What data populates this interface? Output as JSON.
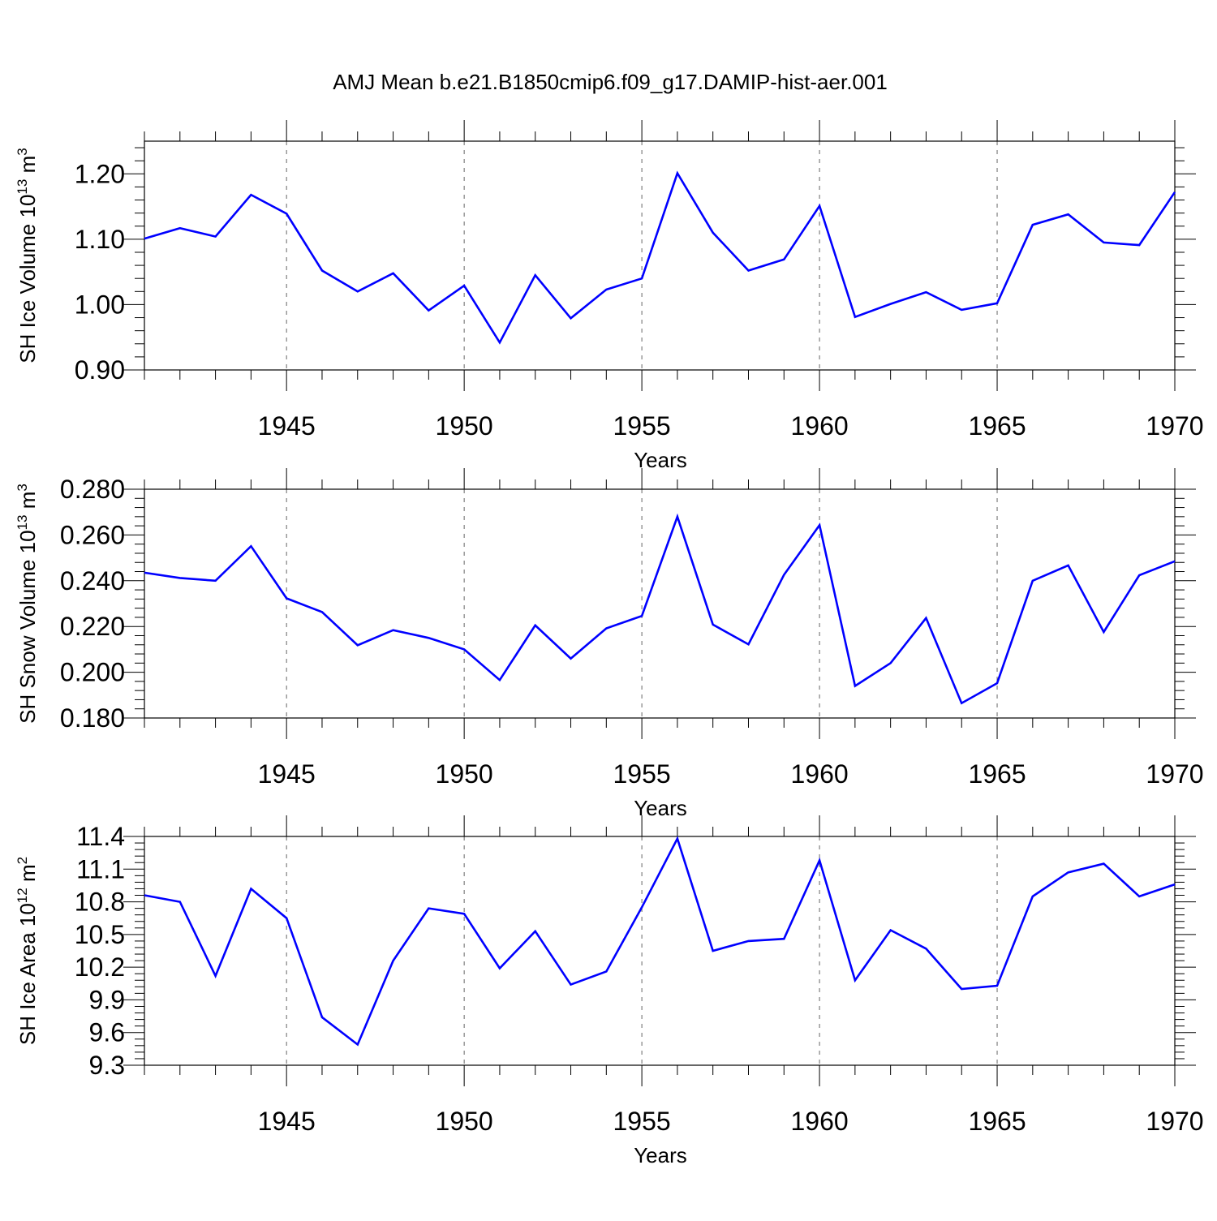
{
  "title": "AMJ Mean b.e21.B1850cmip6.f09_g17.DAMIP-hist-aer.001",
  "colors": {
    "line": "#0000ff",
    "axis": "#000000",
    "grid": "#666666"
  },
  "chart_data": [
    {
      "type": "line",
      "xlabel": "Years",
      "ylabel": {
        "text": "SH Ice Volume 10",
        "exp": "13",
        "unit": " m",
        "unit_exp": "3"
      },
      "xlim": [
        1941,
        1970
      ],
      "ylim": [
        0.9,
        1.25
      ],
      "yticks": [
        0.9,
        1.0,
        1.1,
        1.2
      ],
      "ytick_labels": [
        "0.90",
        "1.00",
        "1.10",
        "1.20"
      ],
      "xticks": [
        1945,
        1950,
        1955,
        1960,
        1965,
        1970
      ],
      "xtick_labels": [
        "1945",
        "1950",
        "1955",
        "1960",
        "1965",
        "1970"
      ],
      "grid": "vertical dashed at major x ticks",
      "x": [
        1941,
        1942,
        1943,
        1944,
        1945,
        1946,
        1947,
        1948,
        1949,
        1950,
        1951,
        1952,
        1953,
        1954,
        1955,
        1956,
        1957,
        1958,
        1959,
        1960,
        1961,
        1962,
        1963,
        1964,
        1965,
        1966,
        1967,
        1968,
        1969,
        1970
      ],
      "values": [
        1.101,
        1.117,
        1.104,
        1.168,
        1.139,
        1.052,
        1.02,
        1.048,
        0.991,
        1.029,
        0.942,
        1.045,
        0.979,
        1.023,
        1.04,
        1.201,
        1.11,
        1.052,
        1.069,
        1.151,
        0.981,
        1.001,
        1.019,
        0.992,
        1.002,
        1.122,
        1.138,
        1.095,
        1.091,
        1.172
      ]
    },
    {
      "type": "line",
      "xlabel": "Years",
      "ylabel": {
        "text": "SH Snow Volume 10",
        "exp": "13",
        "unit": " m",
        "unit_exp": "3"
      },
      "xlim": [
        1941,
        1970
      ],
      "ylim": [
        0.18,
        0.28
      ],
      "yticks": [
        0.18,
        0.2,
        0.22,
        0.24,
        0.26,
        0.28
      ],
      "ytick_labels": [
        "0.180",
        "0.200",
        "0.220",
        "0.240",
        "0.260",
        "0.280"
      ],
      "xticks": [
        1945,
        1950,
        1955,
        1960,
        1965,
        1970
      ],
      "xtick_labels": [
        "1945",
        "1950",
        "1955",
        "1960",
        "1965",
        "1970"
      ],
      "grid": "vertical dashed at major x ticks",
      "x": [
        1941,
        1942,
        1943,
        1944,
        1945,
        1946,
        1947,
        1948,
        1949,
        1950,
        1951,
        1952,
        1953,
        1954,
        1955,
        1956,
        1957,
        1958,
        1959,
        1960,
        1961,
        1962,
        1963,
        1964,
        1965,
        1966,
        1967,
        1968,
        1969,
        1970
      ],
      "values": [
        0.2435,
        0.2412,
        0.24,
        0.2551,
        0.2323,
        0.2263,
        0.2118,
        0.2184,
        0.215,
        0.21,
        0.1966,
        0.2205,
        0.206,
        0.2192,
        0.2246,
        0.268,
        0.2208,
        0.2122,
        0.2426,
        0.2643,
        0.194,
        0.204,
        0.2237,
        0.1865,
        0.1952,
        0.24,
        0.2467,
        0.2176,
        0.2424,
        0.2485
      ]
    },
    {
      "type": "line",
      "xlabel": "Years",
      "ylabel": {
        "text": "SH Ice Area 10",
        "exp": "12",
        "unit": " m",
        "unit_exp": "2"
      },
      "xlim": [
        1941,
        1970
      ],
      "ylim": [
        9.3,
        11.4
      ],
      "yticks": [
        9.3,
        9.6,
        9.9,
        10.2,
        10.5,
        10.8,
        11.1,
        11.4
      ],
      "ytick_labels": [
        "9.3",
        "9.6",
        "9.9",
        "10.2",
        "10.5",
        "10.8",
        "11.1",
        "11.4"
      ],
      "xticks": [
        1945,
        1950,
        1955,
        1960,
        1965,
        1970
      ],
      "xtick_labels": [
        "1945",
        "1950",
        "1955",
        "1960",
        "1965",
        "1970"
      ],
      "grid": "vertical dashed at major x ticks",
      "x": [
        1941,
        1942,
        1943,
        1944,
        1945,
        1946,
        1947,
        1948,
        1949,
        1950,
        1951,
        1952,
        1953,
        1954,
        1955,
        1956,
        1957,
        1958,
        1959,
        1960,
        1961,
        1962,
        1963,
        1964,
        1965,
        1966,
        1967,
        1968,
        1969,
        1970
      ],
      "values": [
        10.86,
        10.8,
        10.12,
        10.92,
        10.65,
        9.74,
        9.49,
        10.26,
        10.74,
        10.69,
        10.19,
        10.53,
        10.04,
        10.16,
        10.75,
        11.38,
        10.35,
        10.44,
        10.46,
        11.18,
        10.08,
        10.54,
        10.37,
        10.0,
        10.03,
        10.85,
        11.07,
        11.15,
        10.85,
        10.96
      ]
    }
  ]
}
